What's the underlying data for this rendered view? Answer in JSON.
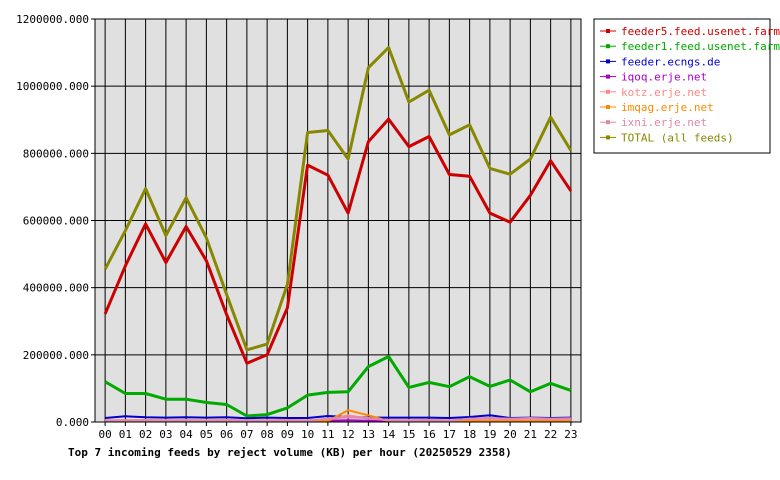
{
  "chart_data": {
    "type": "line",
    "title": "Top 7 incoming feeds by reject volume (KB) per hour (20250529 2358)",
    "xlabel": "",
    "ylabel": "",
    "ylim": [
      0,
      1200000
    ],
    "yticks": [
      "0.000",
      "200000.000",
      "400000.000",
      "600000.000",
      "800000.000",
      "1000000.000",
      "1200000.000"
    ],
    "categories": [
      "00",
      "01",
      "02",
      "03",
      "04",
      "05",
      "06",
      "07",
      "08",
      "09",
      "10",
      "11",
      "12",
      "13",
      "14",
      "15",
      "16",
      "17",
      "18",
      "19",
      "20",
      "21",
      "22",
      "23"
    ],
    "grid": true,
    "legend_position": "top-right",
    "series": [
      {
        "name": "feeder5.feed.usenet.farm",
        "color": "#cc0000",
        "values": [
          322000,
          465000,
          590000,
          475000,
          582000,
          480000,
          320000,
          175000,
          200000,
          340000,
          765000,
          735000,
          622000,
          835000,
          902000,
          820000,
          850000,
          737000,
          732000,
          622000,
          595000,
          675000,
          778000,
          688000
        ]
      },
      {
        "name": "feeder1.feed.usenet.farm",
        "color": "#00aa00",
        "values": [
          120000,
          85000,
          85000,
          68000,
          68000,
          58000,
          52000,
          18000,
          22000,
          42000,
          80000,
          88000,
          90000,
          165000,
          195000,
          103000,
          118000,
          105000,
          135000,
          106000,
          125000,
          90000,
          115000,
          94000
        ]
      },
      {
        "name": "feeder.ecngs.de",
        "color": "#0000cc",
        "values": [
          12000,
          17000,
          14000,
          13000,
          14000,
          13000,
          14000,
          11000,
          13000,
          12000,
          12000,
          18000,
          15000,
          13000,
          13000,
          13000,
          13000,
          12000,
          15000,
          20000,
          12000,
          13000,
          12000,
          13000
        ]
      },
      {
        "name": "iqoq.erje.net",
        "color": "#aa00cc",
        "values": [
          3000,
          4000,
          3000,
          3000,
          4000,
          3000,
          4000,
          3000,
          3000,
          4000,
          3000,
          4000,
          5000,
          4000,
          3000,
          3000,
          4000,
          3000,
          4000,
          3000,
          3000,
          4000,
          3000,
          3000
        ]
      },
      {
        "name": "kotz.erje.net",
        "color": "#ff8888",
        "values": [
          5000,
          5000,
          6000,
          5000,
          5000,
          5000,
          6000,
          5000,
          5000,
          6000,
          5000,
          6000,
          20000,
          10000,
          6000,
          5000,
          6000,
          5000,
          6000,
          5000,
          6000,
          5000,
          6000,
          5000
        ]
      },
      {
        "name": "imqag.erje.net",
        "color": "#ff8800",
        "values": [
          2000,
          2000,
          2000,
          2000,
          2000,
          2000,
          2000,
          2000,
          2000,
          2000,
          2000,
          3000,
          35000,
          20000,
          3000,
          2000,
          2000,
          2000,
          2000,
          2000,
          2000,
          2000,
          2000,
          2000
        ]
      },
      {
        "name": "ixni.erje.net",
        "color": "#dd88aa",
        "values": [
          4000,
          5000,
          4000,
          4000,
          5000,
          4000,
          5000,
          4000,
          4000,
          5000,
          4000,
          10000,
          14000,
          12000,
          5000,
          4000,
          5000,
          4000,
          10000,
          12000,
          10000,
          12000,
          10000,
          11000
        ]
      },
      {
        "name": "TOTAL (all feeds)",
        "color": "#888800",
        "values": [
          455000,
          570000,
          695000,
          555000,
          668000,
          548000,
          380000,
          215000,
          232000,
          410000,
          862000,
          868000,
          783000,
          1055000,
          1115000,
          953000,
          988000,
          855000,
          885000,
          755000,
          738000,
          783000,
          908000,
          808000
        ]
      }
    ]
  }
}
